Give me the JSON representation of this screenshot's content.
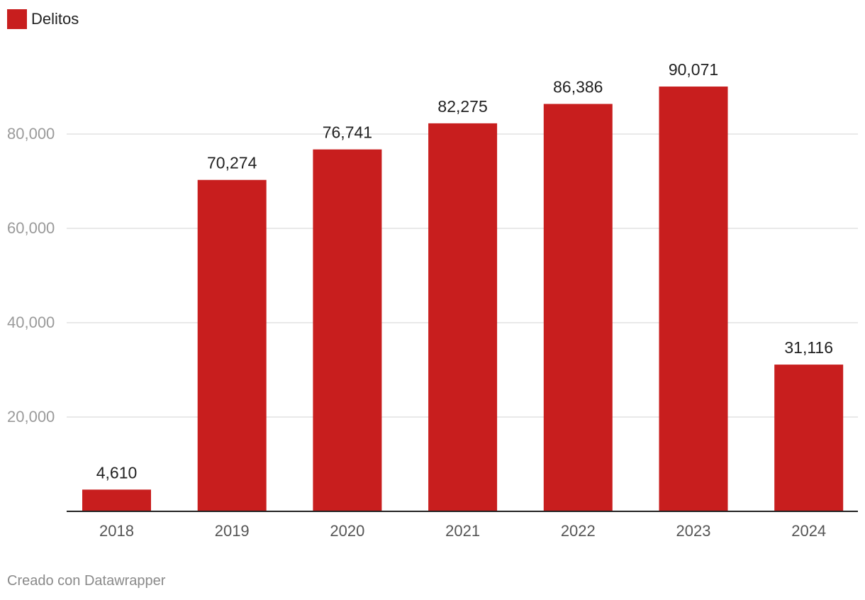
{
  "legend": {
    "label": "Delitos"
  },
  "footer": {
    "credit": "Creado con Datawrapper"
  },
  "colors": {
    "bar": "#c81e1e",
    "grid": "#e2e2e2",
    "axis": "#222222",
    "tick": "#9a9a9a",
    "value": "#222222"
  },
  "chart_data": {
    "type": "bar",
    "title": "",
    "xlabel": "",
    "ylabel": "",
    "categories": [
      "2018",
      "2019",
      "2020",
      "2021",
      "2022",
      "2023",
      "2024"
    ],
    "series": [
      {
        "name": "Delitos",
        "values": [
          4610,
          70274,
          76741,
          82275,
          86386,
          90071,
          31116
        ],
        "labels": [
          "4,610",
          "70,274",
          "76,741",
          "82,275",
          "86,386",
          "90,071",
          "31,116"
        ]
      }
    ],
    "yticks": [
      20000,
      40000,
      60000,
      80000
    ],
    "ytick_labels": [
      "20,000",
      "40,000",
      "60,000",
      "80,000"
    ],
    "ylim": [
      0,
      100000
    ],
    "grid": true,
    "legend": "top-left"
  }
}
